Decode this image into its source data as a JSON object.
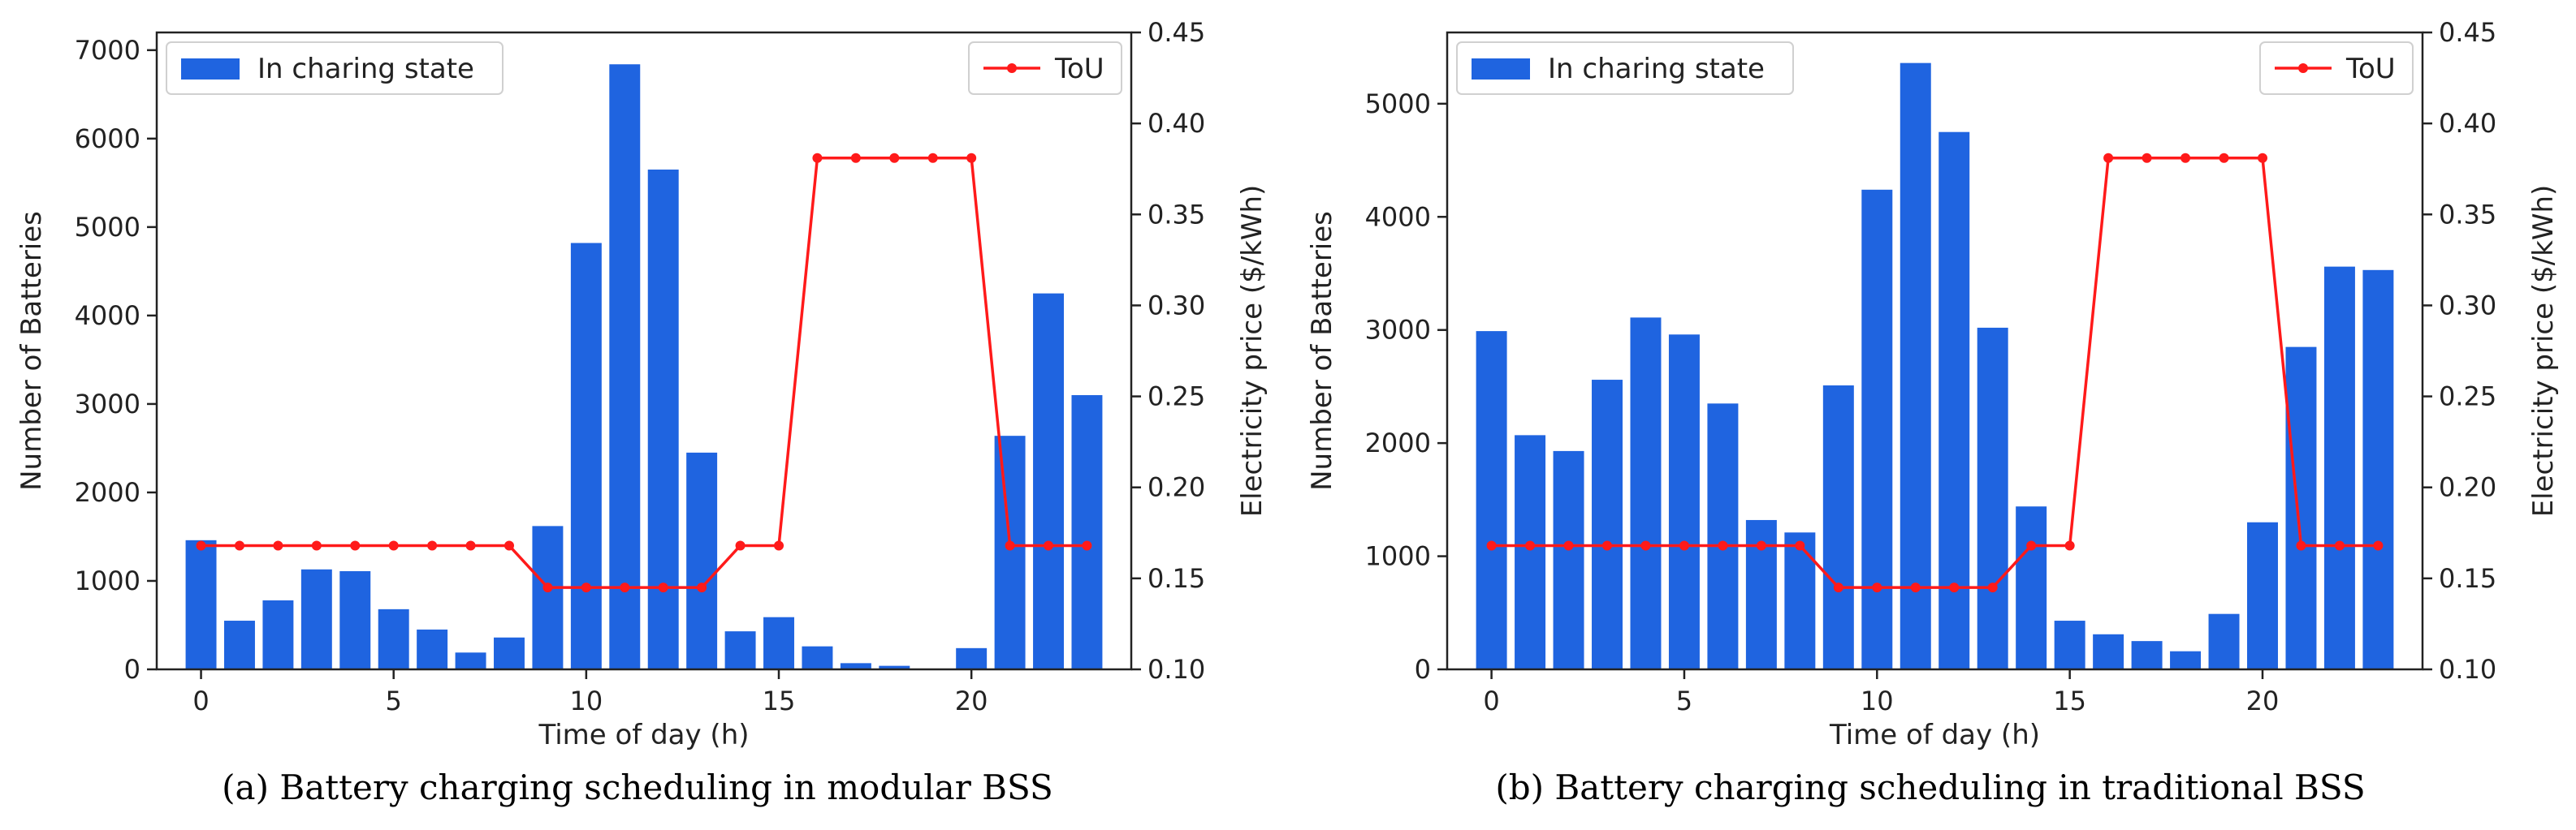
{
  "chart_data": [
    {
      "type": "bar+line",
      "caption": "(a) Battery charging scheduling in modular BSS",
      "xlabel": "Time of day (h)",
      "ylabel": "Number of Batteries",
      "y2label": "Electricity price ($/kWh)",
      "x": [
        0,
        1,
        2,
        3,
        4,
        5,
        6,
        7,
        8,
        9,
        10,
        11,
        12,
        13,
        14,
        15,
        16,
        17,
        18,
        19,
        20,
        21,
        22,
        23
      ],
      "xticks": [
        0,
        5,
        10,
        15,
        20
      ],
      "xlim": [
        -1.15,
        24.15
      ],
      "ylim": [
        0,
        7200
      ],
      "yticks": [
        0,
        1000,
        2000,
        3000,
        4000,
        5000,
        6000,
        7000
      ],
      "y2lim": [
        0.1,
        0.45
      ],
      "y2ticks": [
        0.1,
        0.15,
        0.2,
        0.25,
        0.3,
        0.35,
        0.4,
        0.45
      ],
      "series": [
        {
          "name": "In charing state",
          "kind": "bar",
          "axis": "left",
          "values": [
            1460,
            550,
            780,
            1130,
            1110,
            680,
            450,
            190,
            360,
            1620,
            4820,
            6840,
            5650,
            2450,
            430,
            590,
            260,
            70,
            40,
            0,
            240,
            2640,
            4250,
            3100
          ]
        },
        {
          "name": "ToU",
          "kind": "line",
          "axis": "right",
          "values": [
            0.168,
            0.168,
            0.168,
            0.168,
            0.168,
            0.168,
            0.168,
            0.168,
            0.168,
            0.145,
            0.145,
            0.145,
            0.145,
            0.145,
            0.168,
            0.168,
            0.381,
            0.381,
            0.381,
            0.381,
            0.381,
            0.168,
            0.168,
            0.168
          ]
        }
      ],
      "legend": [
        "top-left",
        "top-right"
      ],
      "grid": false
    },
    {
      "type": "bar+line",
      "caption": "(b) Battery charging scheduling in traditional BSS",
      "xlabel": "Time of day (h)",
      "ylabel": "Number of Batteries",
      "y2label": "Electricity price ($/kWh)",
      "x": [
        0,
        1,
        2,
        3,
        4,
        5,
        6,
        7,
        8,
        9,
        10,
        11,
        12,
        13,
        14,
        15,
        16,
        17,
        18,
        19,
        20,
        21,
        22,
        23
      ],
      "xticks": [
        0,
        5,
        10,
        15,
        20
      ],
      "xlim": [
        -1.15,
        24.15
      ],
      "ylim": [
        0,
        5630
      ],
      "yticks": [
        0,
        1000,
        2000,
        3000,
        4000,
        5000
      ],
      "y2lim": [
        0.1,
        0.45
      ],
      "y2ticks": [
        0.1,
        0.15,
        0.2,
        0.25,
        0.3,
        0.35,
        0.4,
        0.45
      ],
      "series": [
        {
          "name": "In charing state",
          "kind": "bar",
          "axis": "left",
          "values": [
            2990,
            2070,
            1930,
            2560,
            3110,
            2960,
            2350,
            1320,
            1210,
            2510,
            4240,
            5360,
            4750,
            3020,
            1440,
            430,
            310,
            250,
            160,
            490,
            1300,
            2850,
            3560,
            3530
          ]
        },
        {
          "name": "ToU",
          "kind": "line",
          "axis": "right",
          "values": [
            0.168,
            0.168,
            0.168,
            0.168,
            0.168,
            0.168,
            0.168,
            0.168,
            0.168,
            0.145,
            0.145,
            0.145,
            0.145,
            0.145,
            0.168,
            0.168,
            0.381,
            0.381,
            0.381,
            0.381,
            0.381,
            0.168,
            0.168,
            0.168
          ]
        }
      ],
      "legend": [
        "top-left",
        "top-right"
      ],
      "grid": false
    }
  ],
  "colors": {
    "bar": "#1f64e0",
    "line": "#ff1a1a",
    "axis": "#222222"
  }
}
